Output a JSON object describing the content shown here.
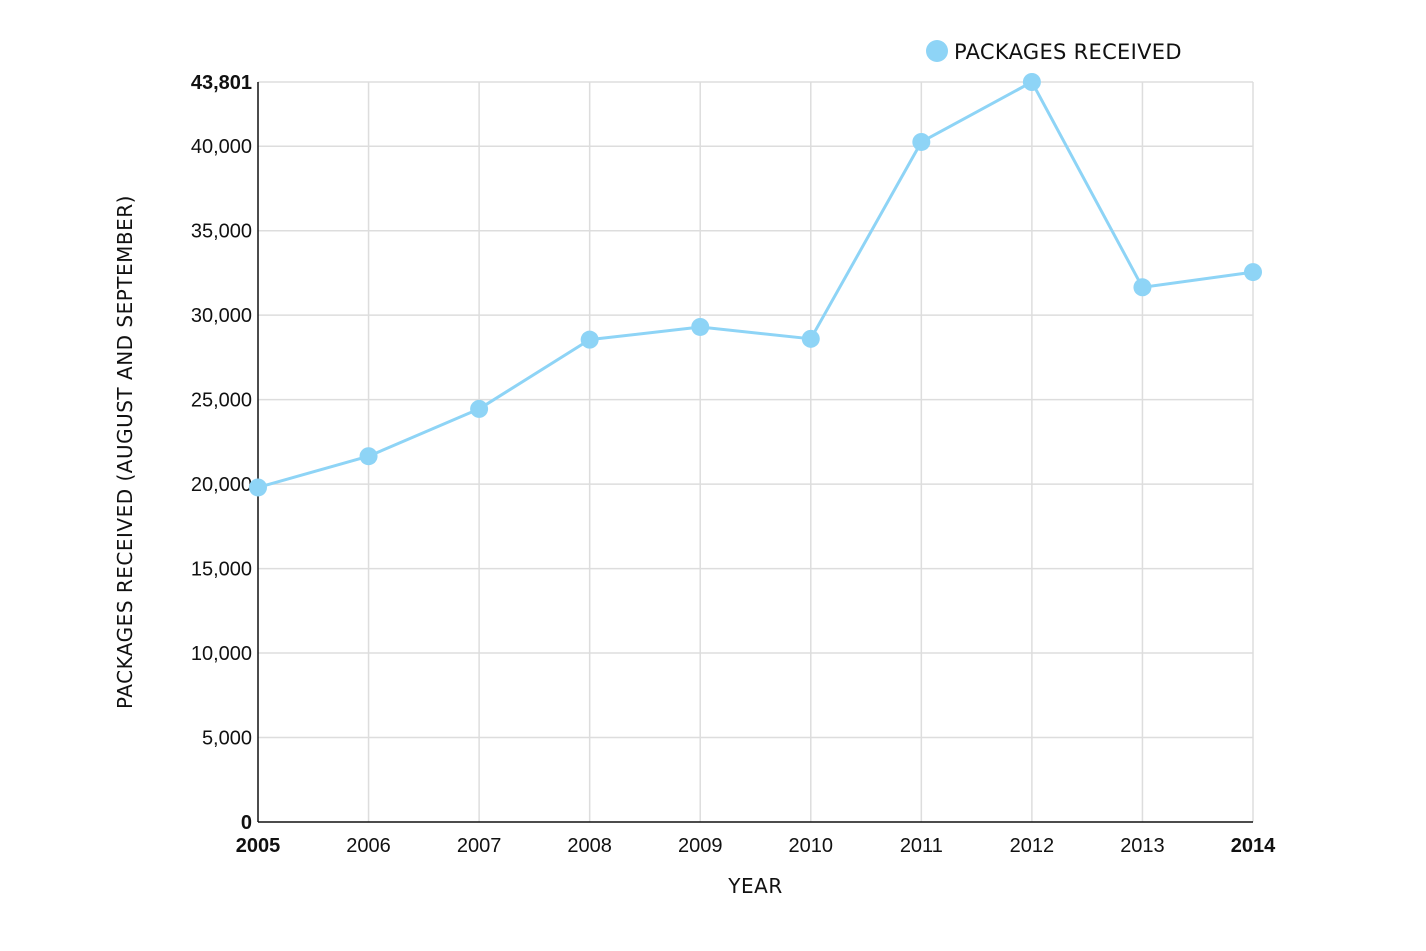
{
  "chart_data": {
    "type": "line",
    "title": "",
    "xlabel": "YEAR",
    "ylabel": "PACKAGES RECEIVED (AUGUST AND SEPTEMBER)",
    "x": [
      2005,
      2006,
      2007,
      2008,
      2009,
      2010,
      2011,
      2012,
      2013,
      2014
    ],
    "series": [
      {
        "name": "PACKAGES RECEIVED",
        "values": [
          19800,
          21650,
          24450,
          28550,
          29300,
          28600,
          40250,
          43801,
          31650,
          32550
        ],
        "color": "#8ed4f6"
      }
    ],
    "ylim": [
      0,
      43801
    ],
    "xlim": [
      2005,
      2014
    ],
    "yticks": [
      0,
      5000,
      10000,
      15000,
      20000,
      25000,
      30000,
      35000,
      40000,
      43801
    ],
    "ytick_labels": [
      "0",
      "5,000",
      "10,000",
      "15,000",
      "20,000",
      "25,000",
      "30,000",
      "35,000",
      "40,000",
      "43,801"
    ],
    "xtick_labels": [
      "2005",
      "2006",
      "2007",
      "2008",
      "2009",
      "2010",
      "2011",
      "2012",
      "2013",
      "2014"
    ],
    "grid": true,
    "legend_position": "top-right"
  }
}
